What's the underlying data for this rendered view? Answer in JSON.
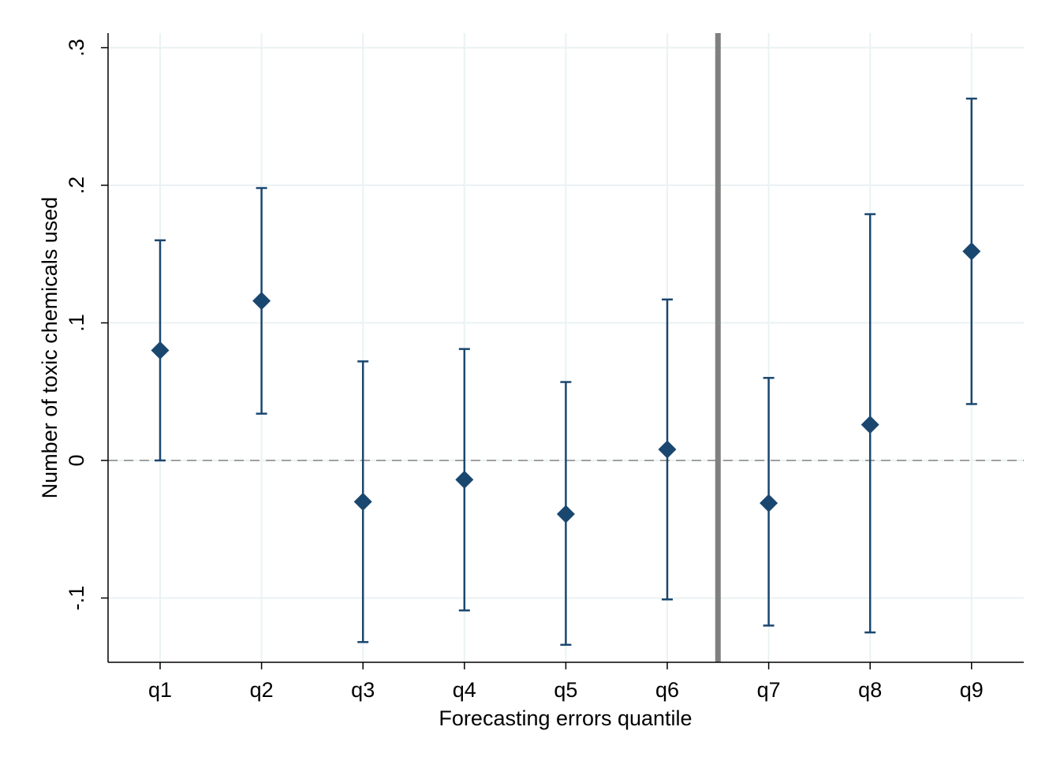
{
  "chart_data": {
    "type": "scatter",
    "subtype": "coefficient plot with 95% confidence intervals",
    "xlabel": "Forecasting errors quantile",
    "ylabel": "Number of toxic chemicals used",
    "categories": [
      "q1",
      "q2",
      "q3",
      "q4",
      "q5",
      "q6",
      "q7",
      "q8",
      "q9"
    ],
    "y_ticks": [
      -0.1,
      0,
      0.1,
      0.2,
      0.3
    ],
    "y_tick_labels": [
      "-.1",
      "0",
      ".1",
      ".2",
      ".3"
    ],
    "ylim": [
      -0.147,
      0.312
    ],
    "xlim": [
      0.5,
      9.5
    ],
    "grid": true,
    "reference_lines": {
      "horizontal_dashed_at_y": 0,
      "vertical_solid_between": [
        "q6",
        "q7"
      ]
    },
    "series": [
      {
        "estimates": [
          0.08,
          0.116,
          -0.03,
          -0.014,
          -0.039,
          0.008,
          -0.031,
          0.026,
          0.152
        ],
        "ci_lower": [
          0.0,
          0.034,
          -0.132,
          -0.109,
          -0.134,
          -0.101,
          -0.12,
          -0.125,
          0.041
        ],
        "ci_upper": [
          0.16,
          0.198,
          0.072,
          0.081,
          0.057,
          0.117,
          0.06,
          0.179,
          0.263
        ]
      }
    ],
    "colors": {
      "marker": "#1a476f",
      "grid": "#eaf2f3",
      "zero_line": "#a0a0a0",
      "divider": "#808080"
    }
  }
}
